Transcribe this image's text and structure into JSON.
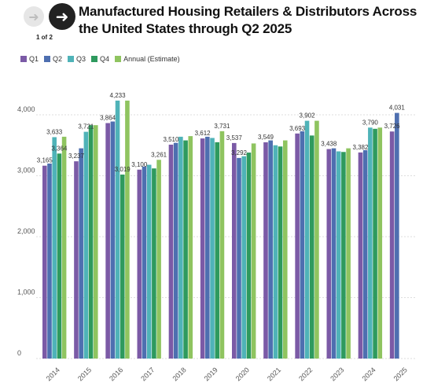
{
  "page": {
    "title": "Manufactured Housing Retailers & Distributors Across the United States through Q2 2025",
    "pager": "1 of 2",
    "prev_icon": "arrow-left",
    "next_icon": "arrow-right"
  },
  "colors": {
    "Q1": "#7b5aa6",
    "Q2": "#4e6fb0",
    "Q3": "#4fb3b8",
    "Q4": "#2e9a5e",
    "Annual (Estimate)": "#8fc460",
    "grid": "#dddddd",
    "text": "#555555"
  },
  "chart_data": {
    "type": "bar",
    "title": "Manufactured Housing Retailers & Distributors Across the United States through Q2 2025",
    "xlabel": "",
    "ylabel": "",
    "ylim": [
      0,
      4500
    ],
    "yticks": [
      0,
      1000,
      2000,
      3000,
      4000
    ],
    "ytick_labels": [
      "0",
      "1,000",
      "2,000",
      "3,000",
      "4,000"
    ],
    "grid": "horizontal",
    "legend_position": "top-left",
    "categories": [
      "2014",
      "2015",
      "2016",
      "2017",
      "2018",
      "2019",
      "2020",
      "2021",
      "2022",
      "2023",
      "2024",
      "2025"
    ],
    "series": [
      {
        "name": "Q1",
        "values": [
          3165,
          3237,
          3864,
          3100,
          3510,
          3612,
          3537,
          3549,
          3693,
          3438,
          3382,
          3726
        ]
      },
      {
        "name": "Q2",
        "values": [
          3200,
          3450,
          3890,
          3150,
          3540,
          3640,
          3292,
          3580,
          3730,
          3450,
          3420,
          4031
        ]
      },
      {
        "name": "Q3",
        "values": [
          3633,
          3721,
          4233,
          3180,
          3640,
          3620,
          3320,
          3500,
          3902,
          3400,
          3790,
          null
        ]
      },
      {
        "name": "Q4",
        "values": [
          3364,
          3830,
          3019,
          3120,
          3580,
          3550,
          3380,
          3480,
          3660,
          3390,
          3770,
          null
        ]
      },
      {
        "name": "Annual (Estimate)",
        "values": [
          3640,
          3830,
          4233,
          3261,
          3650,
          3731,
          3530,
          3580,
          3902,
          3450,
          3790,
          null
        ]
      }
    ],
    "data_labels": [
      {
        "category": "2014",
        "series": "Q1",
        "text": "3,165"
      },
      {
        "category": "2014",
        "series": "Q3",
        "text": "3,633"
      },
      {
        "category": "2014",
        "series": "Q4",
        "text": "3,364"
      },
      {
        "category": "2015",
        "series": "Q1",
        "text": "3,237"
      },
      {
        "category": "2015",
        "series": "Q3",
        "text": "3,721"
      },
      {
        "category": "2016",
        "series": "Q1",
        "text": "3,864"
      },
      {
        "category": "2016",
        "series": "Q3",
        "text": "4,233"
      },
      {
        "category": "2016",
        "series": "Q4",
        "text": "3,019"
      },
      {
        "category": "2017",
        "series": "Q1",
        "text": "3,100"
      },
      {
        "category": "2017",
        "series": "Annual (Estimate)",
        "text": "3,261"
      },
      {
        "category": "2018",
        "series": "Q1",
        "text": "3,510"
      },
      {
        "category": "2019",
        "series": "Q1",
        "text": "3,612"
      },
      {
        "category": "2019",
        "series": "Annual (Estimate)",
        "text": "3,731"
      },
      {
        "category": "2020",
        "series": "Q1",
        "text": "3,537"
      },
      {
        "category": "2020",
        "series": "Q2",
        "text": "3,292"
      },
      {
        "category": "2021",
        "series": "Q1",
        "text": "3,549"
      },
      {
        "category": "2022",
        "series": "Q1",
        "text": "3,693"
      },
      {
        "category": "2022",
        "series": "Q3",
        "text": "3,902"
      },
      {
        "category": "2023",
        "series": "Q1",
        "text": "3,438"
      },
      {
        "category": "2024",
        "series": "Q1",
        "text": "3,382"
      },
      {
        "category": "2024",
        "series": "Q3",
        "text": "3,790"
      },
      {
        "category": "2025",
        "series": "Q1",
        "text": "3,726"
      },
      {
        "category": "2025",
        "series": "Q2",
        "text": "4,031"
      }
    ]
  }
}
